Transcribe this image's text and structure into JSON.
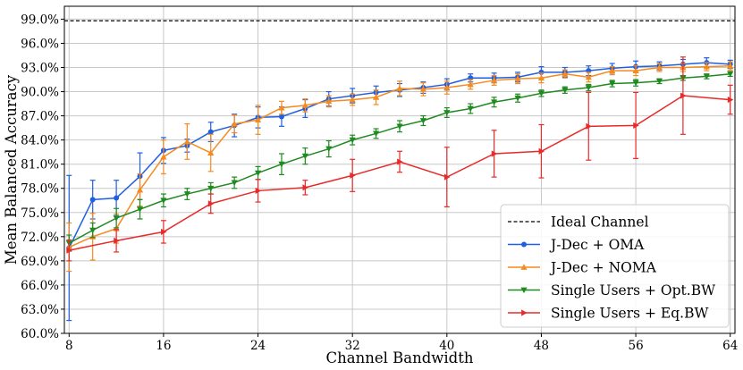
{
  "chart_data": {
    "type": "line",
    "xlabel": "Channel Bandwidth",
    "ylabel": "Mean Balanced Accuracy",
    "xlim": [
      7.6,
      64.4
    ],
    "ylim": [
      60,
      100.6
    ],
    "xticks": [
      8,
      16,
      24,
      32,
      40,
      48,
      56,
      64
    ],
    "xtick_labels": [
      "8",
      "16",
      "24",
      "32",
      "40",
      "48",
      "56",
      "64"
    ],
    "yticks": [
      60,
      63,
      66,
      69,
      72,
      75,
      78,
      81,
      84,
      87,
      90,
      93,
      96,
      99
    ],
    "ytick_labels": [
      "60.0%",
      "63.0%",
      "66.0%",
      "69.0%",
      "72.0%",
      "75.0%",
      "78.0%",
      "81.0%",
      "84.0%",
      "87.0%",
      "90.0%",
      "93.0%",
      "96.0%",
      "99.0%"
    ],
    "grid": true,
    "legend_position": "lower-right",
    "reference_line": {
      "name": "Ideal Channel",
      "y": 98.8,
      "color": "#000000",
      "style": "dashed"
    },
    "series": [
      {
        "name": "J-Dec + OMA",
        "color": "#1f5fe0",
        "marker": "circle",
        "x": [
          8,
          10,
          12,
          14,
          16,
          18,
          20,
          22,
          24,
          26,
          28,
          30,
          32,
          34,
          36,
          38,
          40,
          42,
          44,
          46,
          48,
          50,
          52,
          54,
          56,
          58,
          60,
          62,
          64
        ],
        "y": [
          70.6,
          76.6,
          76.8,
          79.5,
          82.7,
          83.3,
          85.0,
          85.8,
          86.8,
          86.9,
          87.9,
          89.1,
          89.5,
          89.9,
          90.2,
          90.5,
          90.9,
          91.7,
          91.7,
          91.8,
          92.4,
          92.4,
          92.6,
          92.9,
          93.1,
          93.2,
          93.4,
          93.6,
          93.4
        ],
        "err": [
          9.0,
          2.4,
          2.2,
          2.9,
          1.6,
          0.8,
          1.2,
          1.4,
          1.3,
          1.2,
          1.1,
          0.9,
          0.9,
          0.8,
          0.8,
          0.7,
          0.7,
          0.5,
          0.6,
          0.6,
          0.7,
          0.6,
          0.6,
          0.6,
          0.7,
          0.5,
          0.6,
          0.6,
          0.5
        ]
      },
      {
        "name": "J-Dec + NOMA",
        "color": "#f58a1f",
        "marker": "triangle-up",
        "x": [
          8,
          10,
          12,
          14,
          16,
          18,
          20,
          22,
          24,
          26,
          28,
          30,
          32,
          34,
          36,
          38,
          40,
          42,
          44,
          46,
          48,
          50,
          52,
          54,
          56,
          58,
          60,
          62,
          64
        ],
        "y": [
          70.7,
          72.0,
          73.0,
          77.8,
          81.9,
          83.8,
          82.4,
          86.0,
          86.5,
          88.0,
          88.3,
          88.8,
          89.0,
          89.3,
          90.4,
          90.3,
          90.5,
          90.9,
          91.4,
          91.6,
          91.7,
          92.2,
          91.8,
          92.6,
          92.6,
          93.0,
          93.0,
          93.1,
          93.2
        ],
        "err": [
          3.0,
          2.9,
          1.8,
          2.0,
          2.1,
          2.2,
          2.3,
          1.1,
          1.8,
          0.8,
          0.8,
          0.7,
          0.7,
          0.9,
          0.9,
          0.8,
          0.8,
          0.6,
          0.6,
          0.6,
          0.6,
          0.5,
          0.6,
          0.5,
          0.6,
          0.5,
          0.5,
          0.5,
          0.5
        ]
      },
      {
        "name": "Single Users + Opt.BW",
        "color": "#1f8a1f",
        "marker": "triangle-down",
        "x": [
          8,
          10,
          12,
          14,
          16,
          18,
          20,
          22,
          24,
          26,
          28,
          30,
          32,
          34,
          36,
          38,
          40,
          42,
          44,
          46,
          48,
          50,
          52,
          54,
          56,
          58,
          60,
          62,
          64
        ],
        "y": [
          71.2,
          72.8,
          74.3,
          75.4,
          76.5,
          77.3,
          78.0,
          78.7,
          79.9,
          81.0,
          82.0,
          82.9,
          84.0,
          84.8,
          85.7,
          86.4,
          87.4,
          87.9,
          88.7,
          89.2,
          89.8,
          90.2,
          90.5,
          91.0,
          91.1,
          91.3,
          91.7,
          91.9,
          92.2
        ],
        "err": [
          1.0,
          0.9,
          1.2,
          1.2,
          0.8,
          0.7,
          0.7,
          0.7,
          0.8,
          1.3,
          1.0,
          1.0,
          0.6,
          0.6,
          0.7,
          0.6,
          0.6,
          0.6,
          0.6,
          0.5,
          0.4,
          0.4,
          0.4,
          0.4,
          0.4,
          0.3,
          0.3,
          0.3,
          0.3
        ]
      },
      {
        "name": "Single Users + Eq.BW",
        "color": "#e82a2a",
        "marker": "triangle-right",
        "x": [
          8,
          12,
          16,
          20,
          24,
          28,
          32,
          36,
          40,
          44,
          48,
          52,
          56,
          60,
          64
        ],
        "y": [
          70.3,
          71.5,
          72.6,
          76.1,
          77.7,
          78.1,
          79.6,
          81.3,
          79.4,
          82.3,
          82.6,
          85.7,
          85.8,
          89.5,
          89.0
        ],
        "err": [
          1.3,
          1.4,
          1.4,
          1.2,
          1.4,
          0.9,
          2.0,
          1.3,
          3.7,
          2.9,
          3.3,
          4.2,
          4.1,
          4.8,
          1.8
        ]
      }
    ]
  }
}
